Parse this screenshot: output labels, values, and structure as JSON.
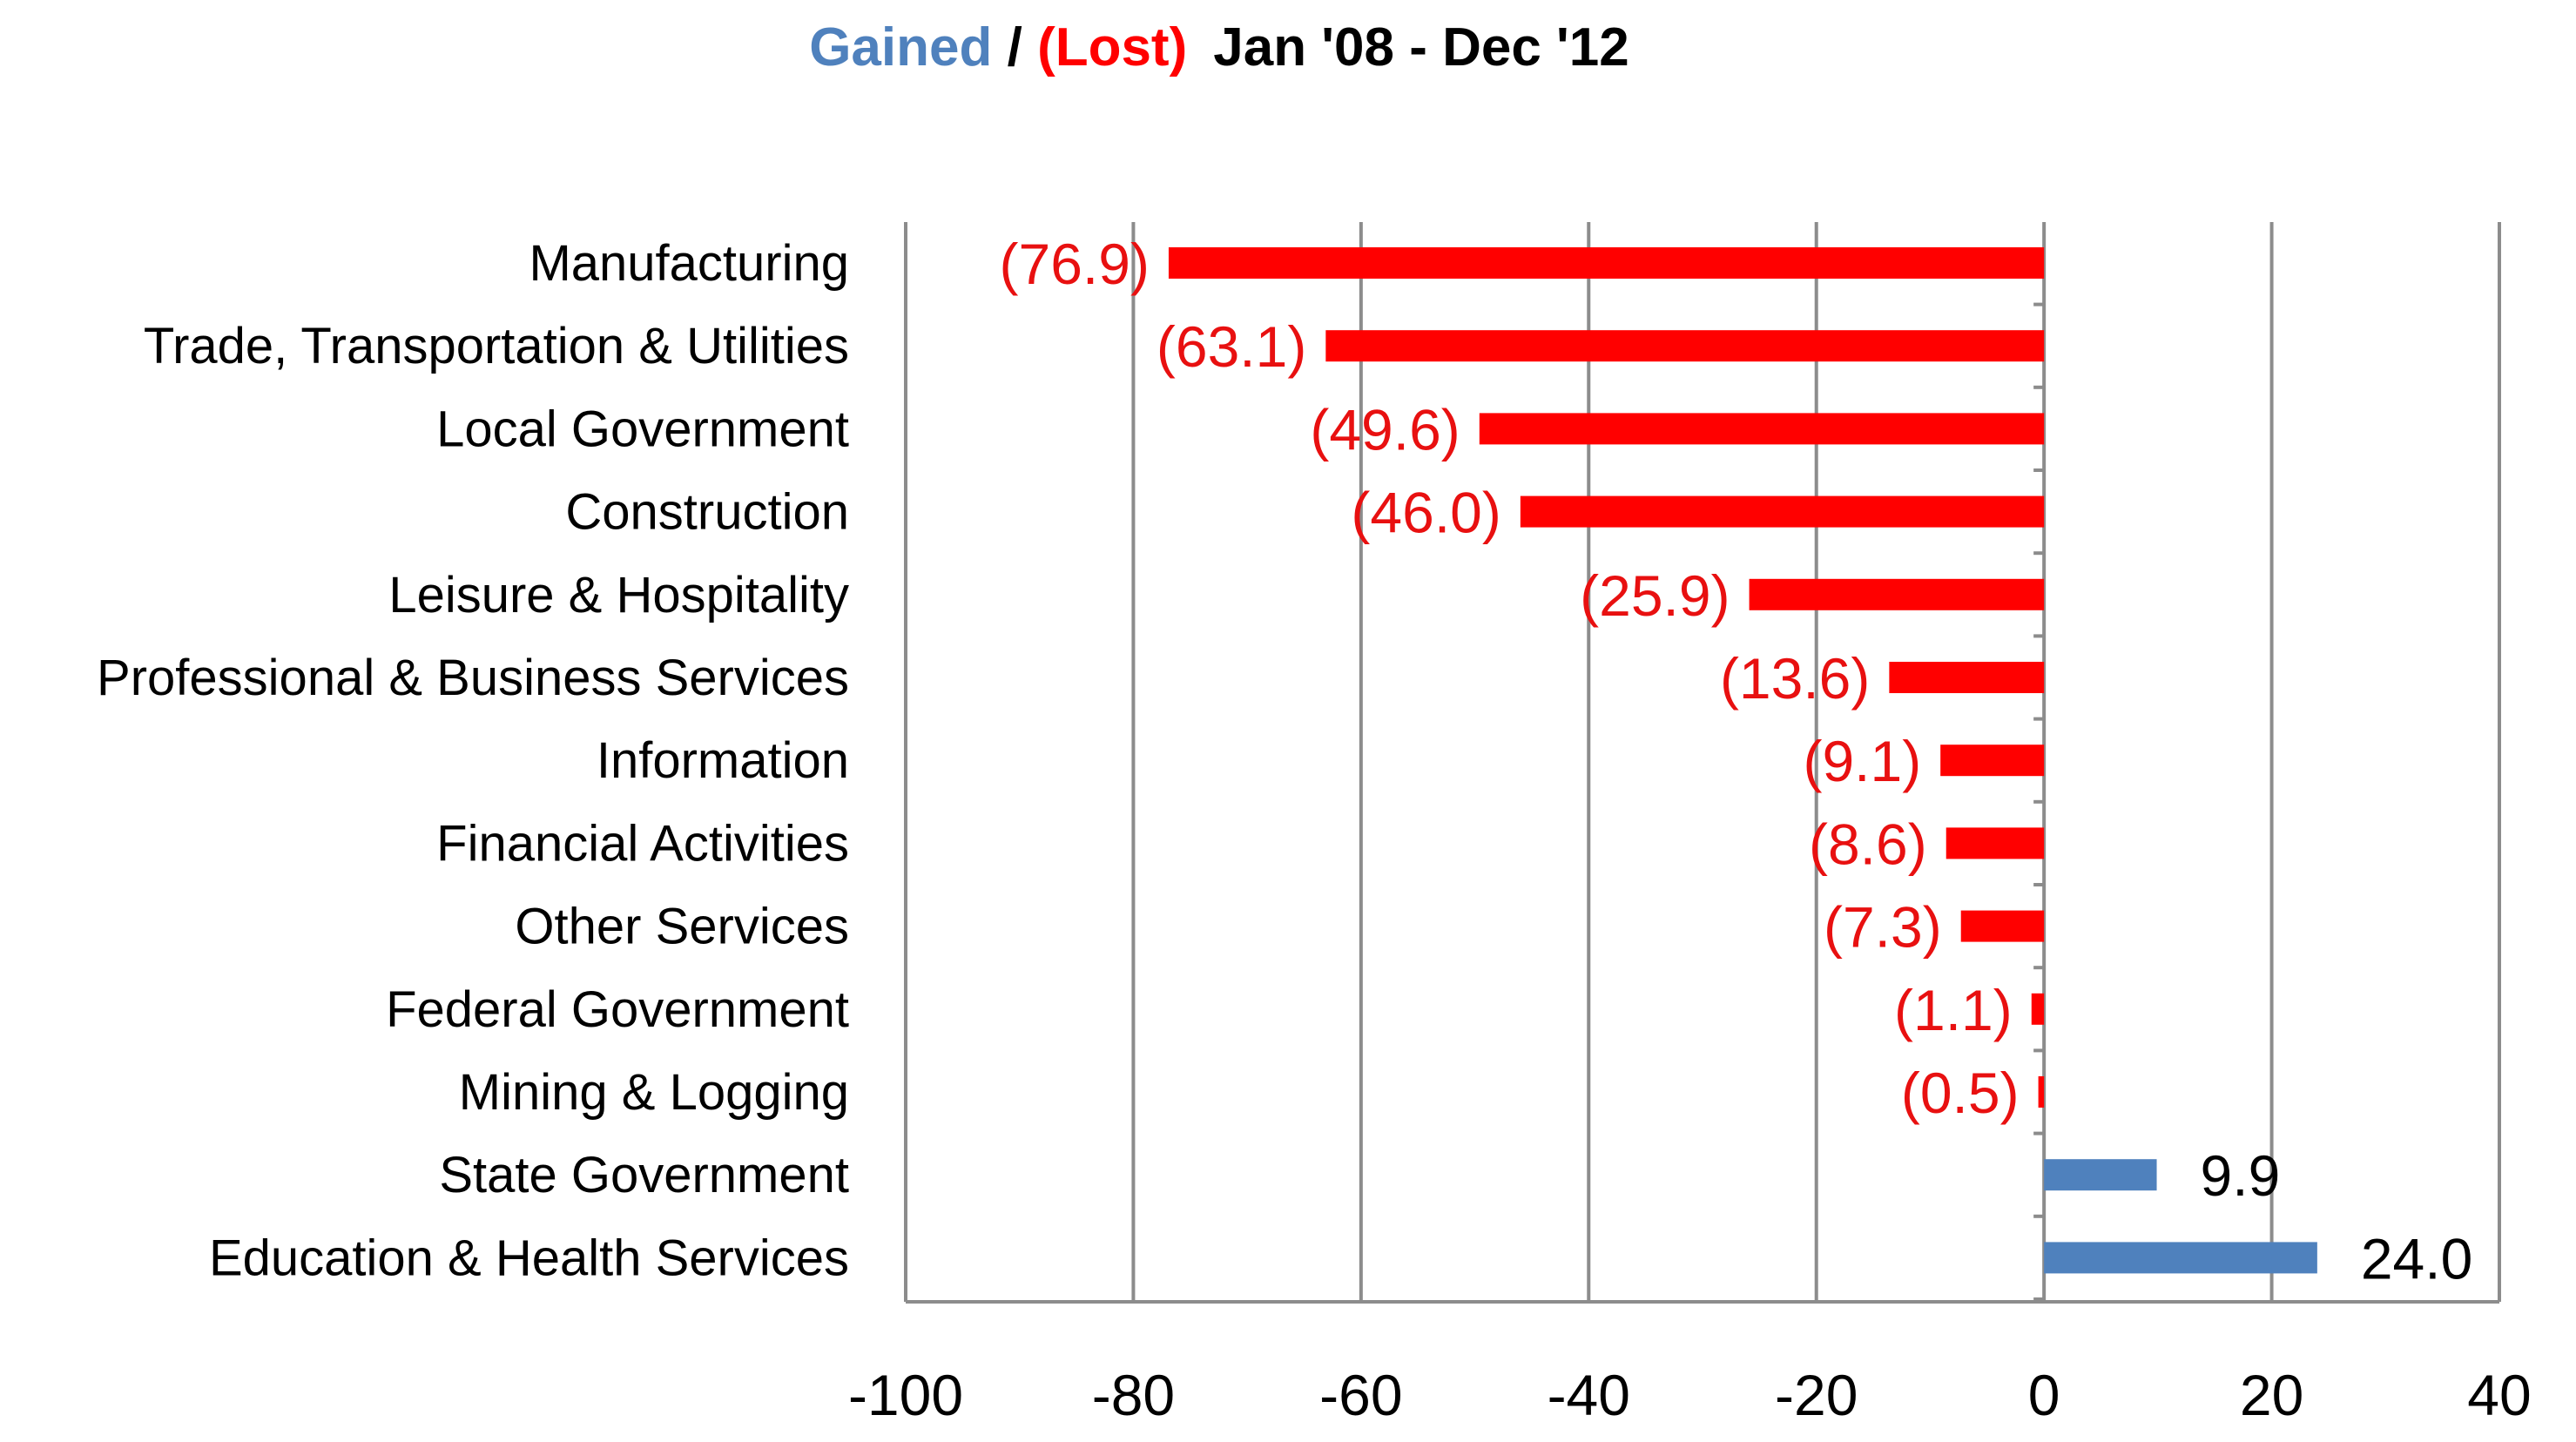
{
  "chart_data": {
    "type": "bar",
    "orientation": "horizontal",
    "title": {
      "gained": "Gained",
      "separator": " / ",
      "lost": "(Lost)",
      "period": "Jan '08 - Dec '12"
    },
    "categories": [
      "Manufacturing",
      "Trade, Transportation & Utilities",
      "Local Government",
      "Construction",
      "Leisure & Hospitality",
      "Professional & Business Services",
      "Information",
      "Financial Activities",
      "Other Services",
      "Federal Government",
      "Mining & Logging",
      "State Government",
      "Education & Health Services"
    ],
    "values": [
      -76.9,
      -63.1,
      -49.6,
      -46.0,
      -25.9,
      -13.6,
      -9.1,
      -8.6,
      -7.3,
      -1.1,
      -0.5,
      9.9,
      24.0
    ],
    "data_labels": [
      "(76.9)",
      "(63.1)",
      "(49.6)",
      "(46.0)",
      "(25.9)",
      "(13.6)",
      "(9.1)",
      "(8.6)",
      "(7.3)",
      "(1.1)",
      "(0.5)",
      "9.9",
      "24.0"
    ],
    "xlim": [
      -100,
      40
    ],
    "xticks": [
      -100,
      -80,
      -60,
      -40,
      -20,
      0,
      20,
      40
    ],
    "xtick_labels": [
      "-100",
      "-80",
      "-60",
      "-40",
      "-20",
      "0",
      "20",
      "40"
    ],
    "grid": "vertical",
    "colors": {
      "gained": "#4F81BD",
      "lost": "#FF0000",
      "lost_label": "#E81010",
      "gained_label": "#000000",
      "grid": "#8C8C8C"
    }
  }
}
